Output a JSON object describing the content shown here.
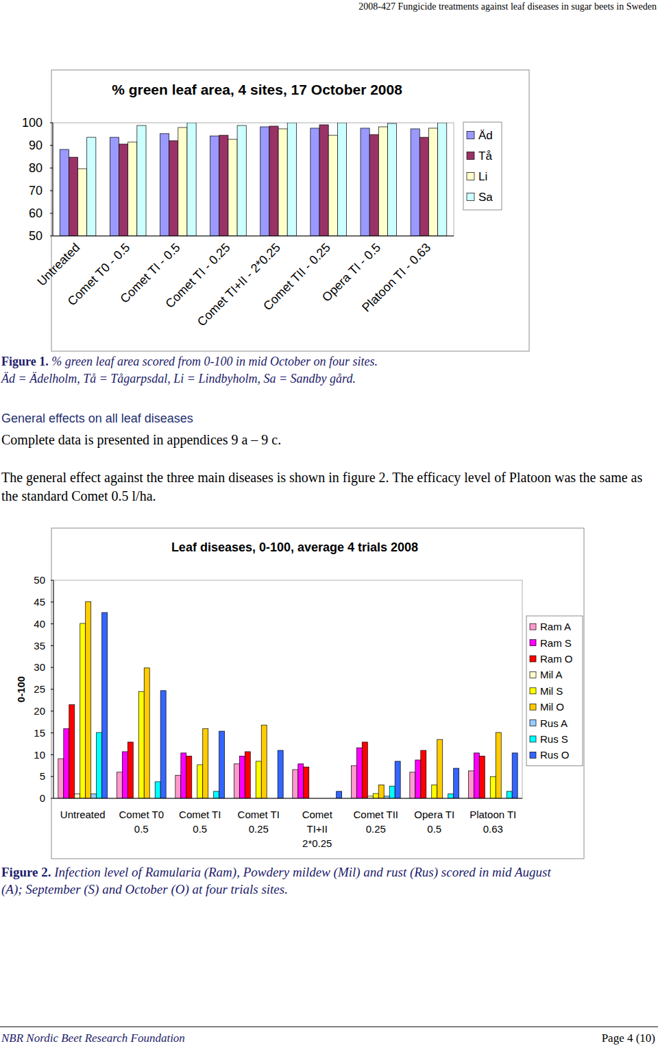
{
  "header": "2008-427 Fungicide treatments against leaf diseases in sugar beets in Sweden",
  "chart_data": [
    {
      "type": "bar",
      "title": "% green leaf area, 4 sites, 17 October 2008",
      "categories": [
        "Untreated",
        "Comet T0 - 0.5",
        "Comet TI - 0.5",
        "Comet TI - 0.25",
        "Comet TI+II - 2*0.25",
        "Comet TII - 0.25",
        "Opera TI - 0.5",
        "Platoon TI - 0.63"
      ],
      "series": [
        {
          "name": "Äd",
          "color": "#9999ff",
          "values": [
            88.2,
            93.6,
            95.2,
            94.2,
            98.2,
            97.6,
            97.6,
            97.3
          ]
        },
        {
          "name": "Tå",
          "color": "#993366",
          "values": [
            84.8,
            90.6,
            92.1,
            94.5,
            98.5,
            99.1,
            94.8,
            93.6
          ]
        },
        {
          "name": "Li",
          "color": "#ffffcc",
          "values": [
            79.7,
            91.5,
            97.9,
            92.7,
            97.3,
            94.5,
            98.2,
            97.6
          ]
        },
        {
          "name": "Sa",
          "color": "#ccffff",
          "values": [
            93.6,
            98.8,
            100,
            98.8,
            100,
            100,
            99.7,
            100
          ]
        }
      ],
      "ylim": [
        50,
        100
      ],
      "yticks": [
        50,
        60,
        70,
        80,
        90,
        100
      ],
      "grid": false,
      "legend": "right"
    },
    {
      "type": "bar",
      "title": "Leaf diseases, 0-100, average 4 trials 2008",
      "y_label": "0-100",
      "categories": [
        "Untreated",
        "Comet T0 0.5",
        "Comet TI 0.5",
        "Comet TI 0.25",
        "Comet TI+II 2*0.25",
        "Comet TII 0.25",
        "Opera TI 0.5",
        "Platoon TI 0.63"
      ],
      "series": [
        {
          "name": "Ram A",
          "color": "#ff99cc",
          "values": [
            9.1,
            6.0,
            5.3,
            7.9,
            6.6,
            7.5,
            6.0,
            6.3
          ]
        },
        {
          "name": "Ram S",
          "color": "#ff00ff",
          "values": [
            16.0,
            10.7,
            10.4,
            9.7,
            7.9,
            11.6,
            8.8,
            10.4
          ]
        },
        {
          "name": "Ram O",
          "color": "#ff0000",
          "values": [
            21.5,
            12.9,
            9.7,
            10.7,
            7.2,
            12.9,
            11.0,
            9.7
          ]
        },
        {
          "name": "Mil A",
          "color": "#ffffcc",
          "values": [
            1.0,
            0,
            0,
            0,
            0,
            0.5,
            0,
            0
          ]
        },
        {
          "name": "Mil S",
          "color": "#ffff00",
          "values": [
            40.1,
            24.5,
            7.7,
            8.5,
            0,
            1.1,
            3.1,
            5.0
          ]
        },
        {
          "name": "Mil O",
          "color": "#ffcc00",
          "values": [
            45.1,
            29.9,
            16.0,
            16.8,
            0,
            3.1,
            13.5,
            15.1
          ]
        },
        {
          "name": "Rus A",
          "color": "#99ccff",
          "values": [
            1.0,
            0,
            0,
            0,
            0,
            0.5,
            0,
            0
          ]
        },
        {
          "name": "Rus S",
          "color": "#00ffff",
          "values": [
            15.1,
            3.8,
            1.6,
            0,
            0,
            2.8,
            1.0,
            1.6
          ]
        },
        {
          "name": "Rus O",
          "color": "#3366ff",
          "values": [
            42.6,
            24.7,
            15.4,
            11.0,
            1.6,
            8.5,
            6.9,
            10.4
          ]
        }
      ],
      "ylim": [
        0,
        50
      ],
      "yticks": [
        0,
        5,
        10,
        15,
        20,
        25,
        30,
        35,
        40,
        45,
        50
      ],
      "grid": false,
      "legend": "right"
    }
  ],
  "figure_1_caption": {
    "label": "Figure 1.",
    "lines": [
      "% green leaf area scored from 0-100 in mid October on four sites.",
      "Äd = Ädelholm, Tå = Tågarpsdal, Li = Lindbyholm, Sa = Sandby gård."
    ]
  },
  "section": {
    "heading": "General effects on all leaf diseases",
    "paragraphs": [
      "Complete data is presented in appendices 9 a – 9 c.",
      "The general effect against the three main diseases is shown in figure 2. The efficacy level of Platoon was the same as the standard Comet 0.5 l/ha."
    ]
  },
  "figure_2_caption": {
    "label": "Figure 2.",
    "text": "Infection level of Ramularia (Ram), Powdery mildew (Mil) and rust (Rus) scored in mid August (A); September (S) and October (O) at four trials sites."
  },
  "footer": {
    "left": "NBR Nordic Beet Research Foundation",
    "right": "Page 4 (10)"
  }
}
